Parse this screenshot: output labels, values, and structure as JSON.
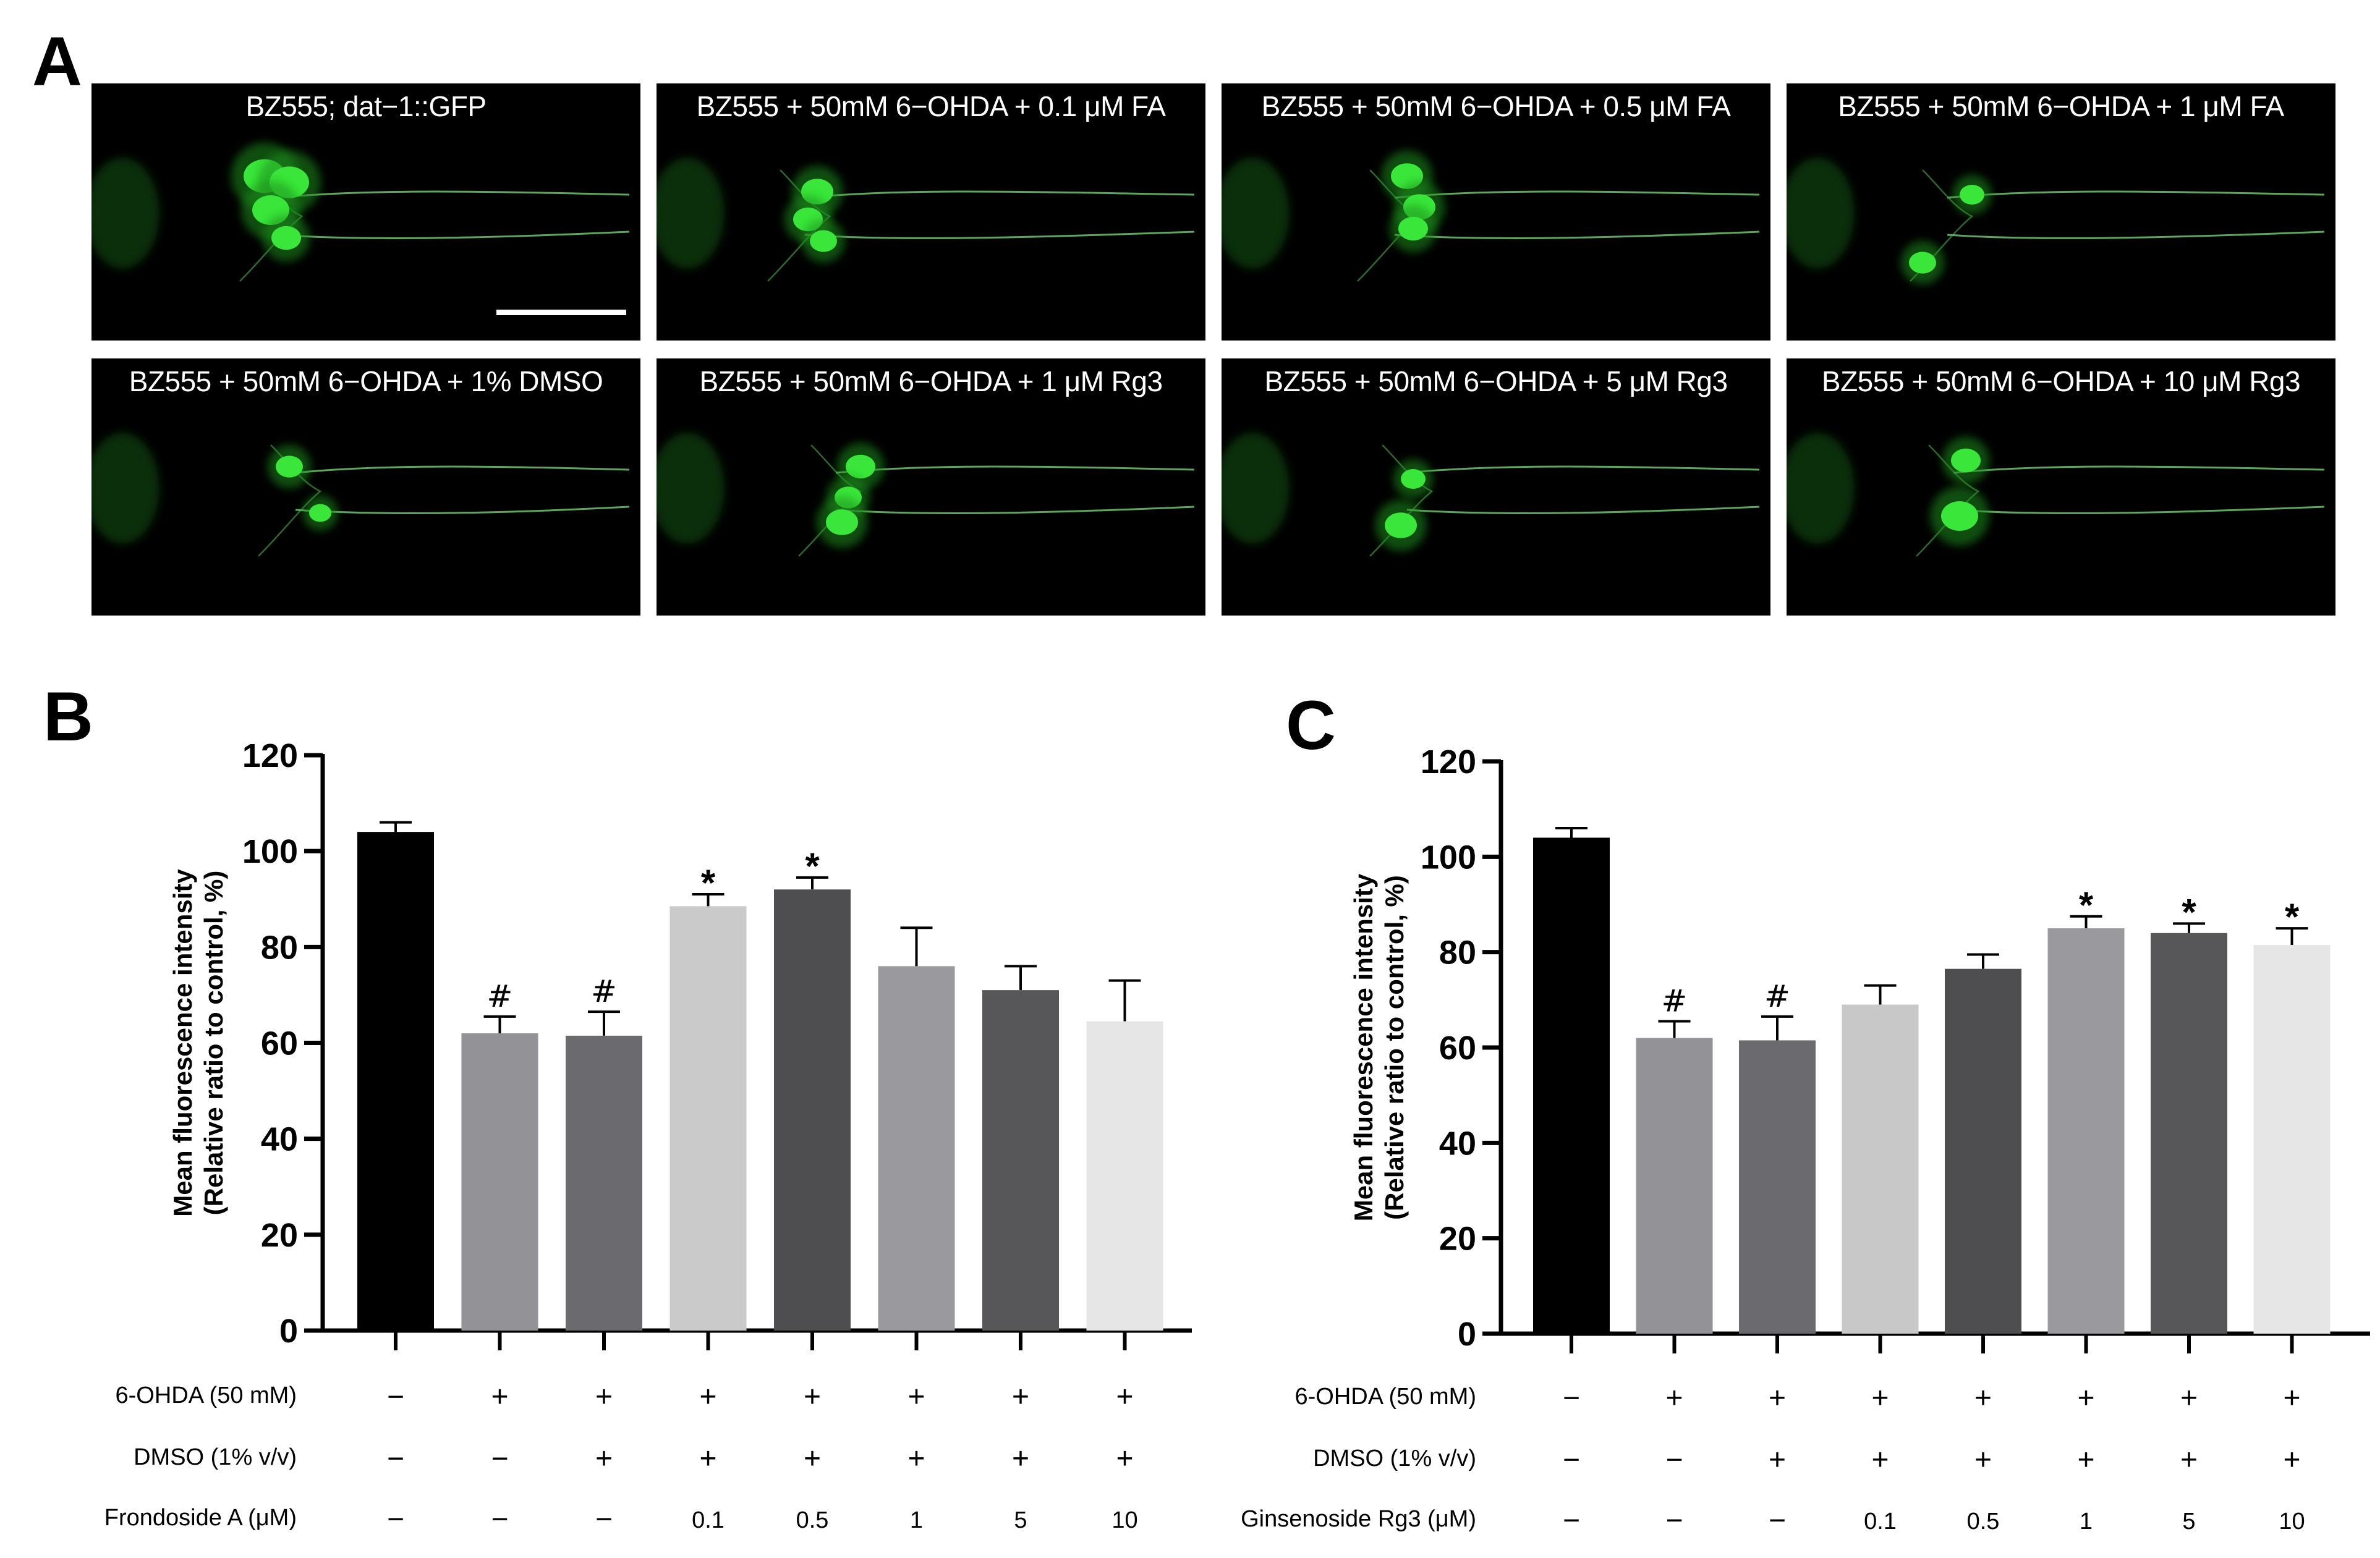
{
  "figure": {
    "panel_a_letter": "A",
    "panel_b_letter": "B",
    "panel_c_letter": "C"
  },
  "panel_a": {
    "images": [
      "BZ555; dat−1::GFP",
      "BZ555 + 50mM 6−OHDA + 0.1 μM FA",
      "BZ555 + 50mM 6−OHDA + 0.5 μM FA",
      "BZ555 + 50mM 6−OHDA + 1 μM FA",
      "BZ555 + 50mM 6−OHDA + 1% DMSO",
      "BZ555 + 50mM 6−OHDA + 1 μM Rg3",
      "BZ555 + 50mM 6−OHDA + 5 μM Rg3",
      "BZ555 + 50mM 6−OHDA + 10 μM Rg3"
    ]
  },
  "chart_data": [
    {
      "type": "bar",
      "panel": "B",
      "ylabel": [
        "Mean fluorescence intensity",
        "(Relative ratio to control, %)"
      ],
      "ylim": [
        0,
        120
      ],
      "yticks": [
        "0",
        "20",
        "40",
        "60",
        "80",
        "100",
        "120"
      ],
      "values": [
        104,
        62,
        61.5,
        88.5,
        92,
        76,
        71,
        64.5
      ],
      "errors": [
        2,
        3.5,
        5,
        2.5,
        2.5,
        8,
        5,
        8.5
      ],
      "colors": [
        "#000000",
        "#929297",
        "#6b6b6f",
        "#cacaca",
        "#4e4e50",
        "#9a9a9e",
        "#575759",
        "#e6e6e6"
      ],
      "annotations": [
        "",
        "#",
        "#",
        "*",
        "*",
        "",
        "",
        ""
      ],
      "rows": [
        {
          "label": "6-OHDA (50 mM)",
          "cells": [
            "−",
            "+",
            "+",
            "+",
            "+",
            "+",
            "+",
            "+"
          ]
        },
        {
          "label": "DMSO (1% v/v)",
          "cells": [
            "−",
            "−",
            "+",
            "+",
            "+",
            "+",
            "+",
            "+"
          ]
        },
        {
          "label": "Frondoside A (μM)",
          "cells": [
            "−",
            "−",
            "−",
            "0.1",
            "0.5",
            "1",
            "5",
            "10"
          ]
        }
      ]
    },
    {
      "type": "bar",
      "panel": "C",
      "ylabel": [
        "Mean fluorescence intensity",
        "(Relative ratio to control, %)"
      ],
      "ylim": [
        0,
        120
      ],
      "yticks": [
        "0",
        "20",
        "40",
        "60",
        "80",
        "100",
        "120"
      ],
      "values": [
        104,
        62,
        61.5,
        69,
        76.5,
        85,
        84,
        81.5
      ],
      "errors": [
        2,
        3.5,
        5,
        4,
        3,
        2.5,
        2,
        3.5
      ],
      "colors": [
        "#000000",
        "#929297",
        "#6b6b6f",
        "#c8c8c8",
        "#4e4e50",
        "#9a9a9e",
        "#575759",
        "#e6e6e6"
      ],
      "annotations": [
        "",
        "#",
        "#",
        "",
        "",
        "*",
        "*",
        "*"
      ],
      "rows": [
        {
          "label": "6-OHDA (50 mM)",
          "cells": [
            "−",
            "+",
            "+",
            "+",
            "+",
            "+",
            "+",
            "+"
          ]
        },
        {
          "label": "DMSO (1% v/v)",
          "cells": [
            "−",
            "−",
            "+",
            "+",
            "+",
            "+",
            "+",
            "+"
          ]
        },
        {
          "label": "Ginsenoside Rg3 (μM)",
          "cells": [
            "−",
            "−",
            "−",
            "0.1",
            "0.5",
            "1",
            "5",
            "10"
          ]
        }
      ]
    }
  ]
}
